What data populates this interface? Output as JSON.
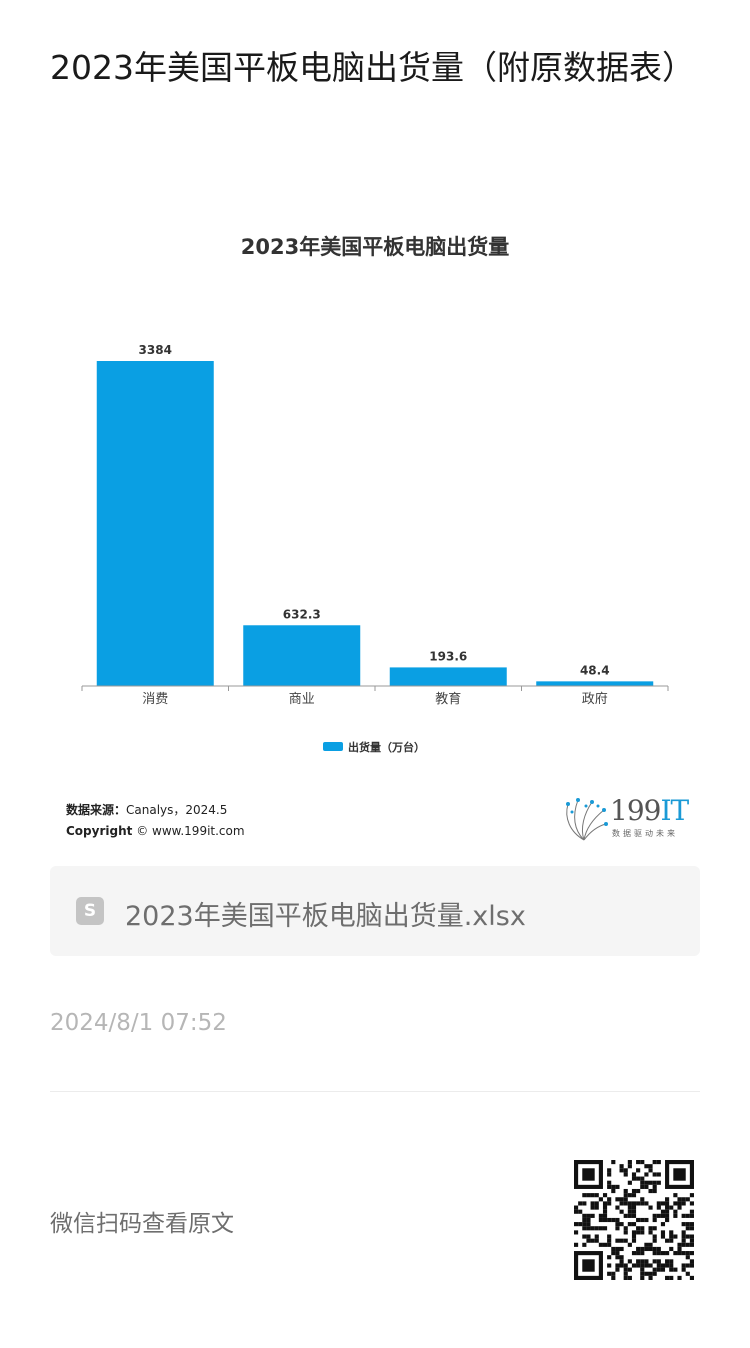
{
  "article": {
    "title": "2023年美国平板电脑出货量（附原数据表）"
  },
  "chart_data": {
    "type": "bar",
    "title": "2023年美国平板电脑出货量",
    "categories": [
      "消费",
      "商业",
      "教育",
      "政府"
    ],
    "series": [
      {
        "name": "出货量（万台）",
        "values": [
          3384,
          632.3,
          193.6,
          48.4
        ],
        "color": "#0a9fe3"
      }
    ],
    "value_labels": [
      "3384",
      "632.3",
      "193.6",
      "48.4"
    ],
    "ylim": [
      0,
      3384
    ],
    "grid": false,
    "legend_position": "bottom"
  },
  "source": {
    "label": "数据来源：",
    "value": "Canalys，2024.5",
    "copyright_label": "Copyright",
    "copyright_value": "© www.199it.com"
  },
  "brand": {
    "name_num": "199",
    "name_it": "IT",
    "tagline": "数据驱动未来"
  },
  "attachment": {
    "icon": "spreadsheet-file-icon",
    "icon_glyph": "S",
    "file_name": "2023年美国平板电脑出货量.xlsx"
  },
  "meta": {
    "timestamp": "2024/8/1 07:52"
  },
  "footer": {
    "scan_text": "微信扫码查看原文"
  }
}
